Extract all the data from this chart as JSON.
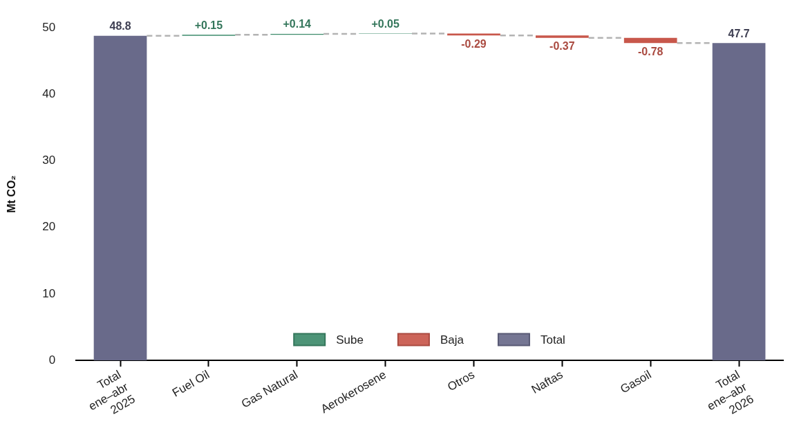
{
  "chart_data": {
    "type": "bar",
    "ylabel": "Mt CO₂",
    "categories": [
      "Total\nene–abr\n2025",
      "Fuel Oil",
      "Gas Natural",
      "Aerokerosene",
      "Otros",
      "Naftas",
      "Gasoil",
      "Total\nene–abr\n2026"
    ],
    "series": [
      {
        "name": "Sube",
        "color": "#3d8b6b",
        "values": [
          null,
          0.15,
          0.14,
          0.05,
          null,
          null,
          null,
          null
        ],
        "base": [
          null,
          48.8,
          48.95,
          49.09,
          null,
          null,
          null,
          null
        ],
        "value_labels": [
          null,
          "+0.15",
          "+0.14",
          "+0.05",
          null,
          null,
          null,
          null
        ]
      },
      {
        "name": "Baja",
        "color": "#c8574b",
        "values": [
          null,
          null,
          null,
          null,
          -0.29,
          -0.37,
          -0.78,
          null
        ],
        "base": [
          null,
          null,
          null,
          null,
          49.14,
          48.85,
          48.48,
          null
        ],
        "value_labels": [
          null,
          null,
          null,
          null,
          "-0.29",
          "-0.37",
          "-0.78",
          null
        ]
      },
      {
        "name": "Total",
        "color": "#696a8a",
        "values": [
          48.8,
          null,
          null,
          null,
          null,
          null,
          null,
          47.7
        ],
        "value_labels": [
          "48.8",
          null,
          null,
          null,
          null,
          null,
          null,
          "47.7"
        ]
      }
    ],
    "ylim": [
      0,
      50
    ],
    "yticks": [
      0,
      10,
      20,
      30,
      40,
      50
    ],
    "grid": false,
    "legend": "bottom"
  }
}
